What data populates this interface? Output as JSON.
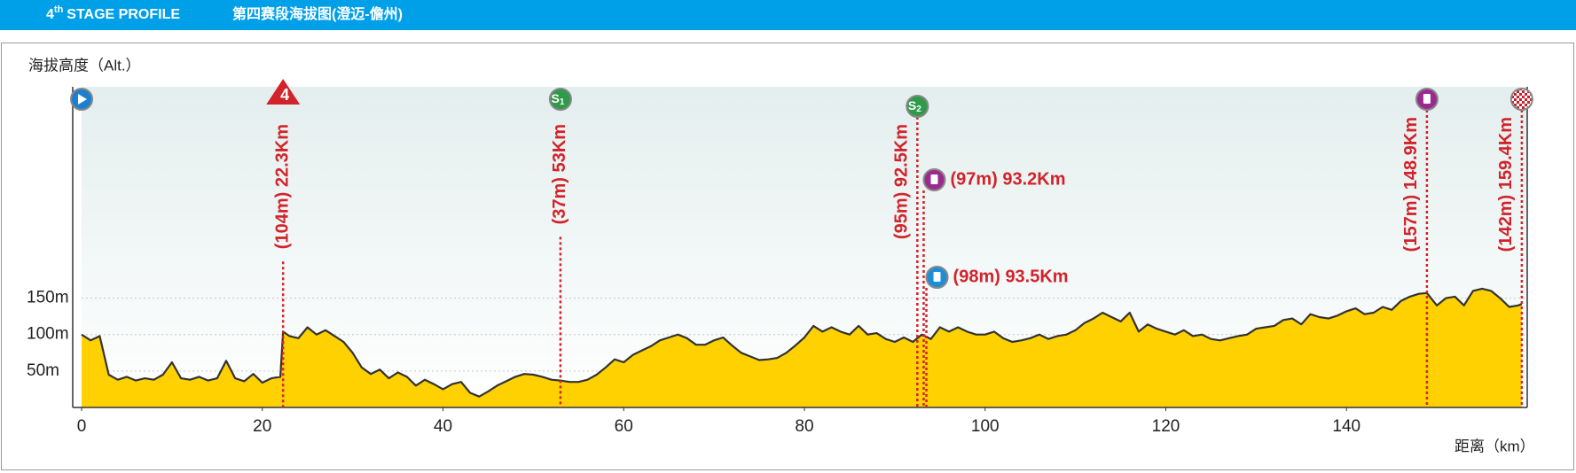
{
  "chart_data": {
    "type": "area",
    "stage_number": "4",
    "stage_suffix": "th",
    "title": "STAGE PROFILE",
    "subtitle": "第四赛段海拔图(澄迈-儋州)",
    "y_label": "海拔高度（Alt.）",
    "x_label": "距离（km）",
    "xlim": [
      0,
      160
    ],
    "xticks": [
      0,
      20,
      40,
      60,
      80,
      100,
      120,
      140
    ],
    "ylim": [
      0,
      440
    ],
    "yticks": [
      {
        "value": 50,
        "label": "50m"
      },
      {
        "value": 100,
        "label": "100m"
      },
      {
        "value": 150,
        "label": "150m"
      }
    ],
    "grid": true,
    "x": [
      0,
      1,
      2,
      3,
      4,
      5,
      6,
      7,
      8,
      9,
      10,
      11,
      12,
      13,
      14,
      15,
      16,
      17,
      18,
      19,
      20,
      21,
      22,
      22.3,
      23,
      24,
      25,
      26,
      27,
      28,
      29,
      30,
      31,
      32,
      33,
      34,
      35,
      36,
      37,
      38,
      39,
      40,
      41,
      42,
      43,
      44,
      45,
      46,
      47,
      48,
      49,
      50,
      51,
      52,
      53,
      54,
      55,
      56,
      57,
      58,
      59,
      60,
      61,
      62,
      63,
      64,
      65,
      66,
      67,
      68,
      69,
      70,
      71,
      72,
      73,
      74,
      75,
      76,
      77,
      78,
      79,
      80,
      81,
      82,
      83,
      84,
      85,
      86,
      87,
      88,
      89,
      90,
      91,
      92,
      93,
      94,
      95,
      96,
      97,
      98,
      99,
      100,
      101,
      102,
      103,
      104,
      105,
      106,
      107,
      108,
      109,
      110,
      111,
      112,
      113,
      114,
      115,
      116,
      117,
      118,
      119,
      120,
      121,
      122,
      123,
      124,
      125,
      126,
      127,
      128,
      129,
      130,
      131,
      132,
      133,
      134,
      135,
      136,
      137,
      138,
      139,
      140,
      141,
      142,
      143,
      144,
      145,
      146,
      147,
      148,
      148.9,
      150,
      151,
      152,
      153,
      154,
      155,
      156,
      157,
      158,
      159,
      159.4
    ],
    "series": [
      {
        "name": "海拔",
        "color": "#ffd100",
        "line_color": "#333333",
        "values": [
          100,
          92,
          98,
          45,
          38,
          42,
          37,
          40,
          38,
          45,
          62,
          40,
          38,
          42,
          37,
          40,
          64,
          40,
          36,
          46,
          34,
          40,
          42,
          104,
          98,
          95,
          110,
          100,
          106,
          98,
          90,
          75,
          55,
          46,
          52,
          40,
          48,
          42,
          30,
          38,
          32,
          25,
          32,
          35,
          20,
          15,
          22,
          30,
          36,
          42,
          46,
          45,
          42,
          38,
          37,
          35,
          35,
          38,
          45,
          55,
          66,
          62,
          72,
          78,
          84,
          92,
          96,
          100,
          95,
          86,
          86,
          92,
          96,
          85,
          75,
          70,
          65,
          66,
          68,
          75,
          85,
          96,
          112,
          104,
          110,
          104,
          100,
          112,
          100,
          102,
          94,
          90,
          96,
          90,
          100,
          94,
          110,
          104,
          110,
          104,
          100,
          100,
          104,
          95,
          90,
          92,
          95,
          100,
          94,
          98,
          100,
          106,
          116,
          122,
          130,
          124,
          118,
          130,
          104,
          114,
          108,
          104,
          100,
          106,
          98,
          100,
          94,
          92,
          95,
          98,
          100,
          108,
          110,
          112,
          120,
          122,
          114,
          128,
          124,
          122,
          126,
          132,
          136,
          128,
          130,
          138,
          134,
          146,
          152,
          156,
          157,
          140,
          150,
          152,
          140,
          160,
          163,
          160,
          150,
          138,
          140,
          142
        ]
      }
    ],
    "annotations": [
      {
        "km": 0,
        "marker": "start"
      },
      {
        "km": 22.3,
        "marker": "kom",
        "text": "4",
        "label": "(104m) 22.3Km",
        "side": "center"
      },
      {
        "km": 53,
        "marker": "sprint",
        "text": "S",
        "sub": "1",
        "label": "(37m) 53Km",
        "side": "center"
      },
      {
        "km": 92.5,
        "marker": "sprint",
        "text": "S",
        "sub": "2",
        "label": "(95m) 92.5Km",
        "side": "left"
      },
      {
        "km": 93.2,
        "marker": "feed",
        "label": "(97m) 93.2Km",
        "side": "horizontal"
      },
      {
        "km": 93.5,
        "marker": "water",
        "label": "(98m) 93.5Km",
        "side": "horizontal"
      },
      {
        "km": 148.9,
        "marker": "feed",
        "label": "(157m) 148.9Km",
        "side": "left"
      },
      {
        "km": 159.4,
        "marker": "finish",
        "label": "(142m) 159.4Km",
        "side": "left"
      }
    ]
  }
}
